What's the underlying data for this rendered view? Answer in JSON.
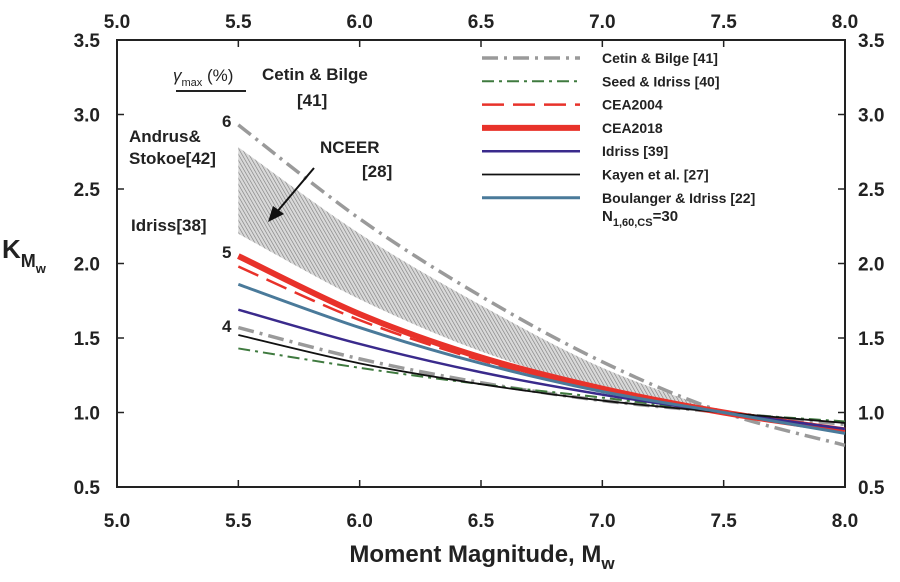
{
  "chart_data": {
    "type": "line",
    "xlabel": "Moment Magnitude, M",
    "xlabel_sub": "w",
    "ylabel": "K",
    "ylabel_sub1": "M",
    "ylabel_sub2": "w",
    "xlim": [
      5.0,
      8.0
    ],
    "ylim": [
      0.5,
      3.5
    ],
    "x_ticks": [
      5.0,
      5.5,
      6.0,
      6.5,
      7.0,
      7.5,
      8.0
    ],
    "y_ticks": [
      0.5,
      1.0,
      1.5,
      2.0,
      2.5,
      3.0,
      3.5
    ],
    "x_tick_labels": [
      "5.0",
      "5.5",
      "6.0",
      "6.5",
      "7.0",
      "7.5",
      "8.0"
    ],
    "y_tick_labels": [
      "0.5",
      "1.0",
      "1.5",
      "2.0",
      "2.5",
      "3.0",
      "3.5"
    ],
    "grid": false,
    "legend_position": "top-right",
    "legend_note": "N",
    "legend_note_sub": "1,60,CS",
    "legend_note_value": "=30",
    "series": [
      {
        "name": "Cetin & Bilge [41]",
        "color": "#9a9a9a",
        "dash": "16,6,3,6",
        "width": 3.5,
        "x": [
          5.5,
          6.0,
          6.5,
          7.0,
          7.5,
          8.0
        ],
        "y": [
          2.93,
          2.3,
          1.78,
          1.34,
          1.0,
          0.78
        ]
      },
      {
        "name": "Cetin & Bilge [41]",
        "color": "#9a9a9a",
        "dash": "16,6,3,6",
        "width": 3.5,
        "legend": false,
        "x": [
          5.5,
          6.0,
          6.5,
          7.0,
          7.5,
          8.0
        ],
        "y": [
          1.57,
          1.36,
          1.2,
          1.08,
          1.0,
          0.92
        ]
      },
      {
        "name": "Seed & Idriss [40]",
        "color": "#3f7a3f",
        "dash": "12,5,3,5",
        "width": 2,
        "x": [
          5.5,
          6.0,
          6.5,
          7.0,
          7.5,
          8.0
        ],
        "y": [
          1.43,
          1.3,
          1.19,
          1.1,
          1.0,
          0.94
        ]
      },
      {
        "name": "CEA2004",
        "color": "#e8322a",
        "dash": "22,9",
        "width": 2.5,
        "x": [
          5.5,
          6.0,
          6.5,
          7.0,
          7.5,
          8.0
        ],
        "y": [
          1.98,
          1.62,
          1.35,
          1.15,
          1.0,
          0.87
        ]
      },
      {
        "name": "CEA2018",
        "color": "#e8322a",
        "dash": "",
        "width": 6,
        "x": [
          5.5,
          6.0,
          6.5,
          7.0,
          7.5,
          8.0
        ],
        "y": [
          2.05,
          1.66,
          1.37,
          1.16,
          1.0,
          0.88
        ]
      },
      {
        "name": "Idriss [39]",
        "color": "#3a2a8c",
        "dash": "",
        "width": 2.5,
        "x": [
          5.5,
          6.0,
          6.5,
          7.0,
          7.5,
          8.0
        ],
        "y": [
          1.69,
          1.46,
          1.27,
          1.12,
          1.0,
          0.89
        ]
      },
      {
        "name": "Kayen et al. [27]",
        "color": "#111111",
        "dash": "",
        "width": 1.8,
        "x": [
          5.5,
          6.0,
          6.5,
          7.0,
          7.5,
          8.0
        ],
        "y": [
          1.52,
          1.33,
          1.19,
          1.08,
          1.0,
          0.93
        ]
      },
      {
        "name": "Boulanger & Idriss [22]",
        "color": "#4a7a9a",
        "dash": "",
        "width": 3,
        "x": [
          5.5,
          6.0,
          6.5,
          7.0,
          7.5,
          8.0
        ],
        "y": [
          1.86,
          1.57,
          1.33,
          1.14,
          1.0,
          0.86
        ]
      }
    ],
    "band": {
      "name": "NCEER [28]",
      "x": [
        5.5,
        6.0,
        6.5,
        7.0,
        7.5
      ],
      "upper": [
        2.78,
        2.2,
        1.72,
        1.3,
        1.0
      ],
      "lower": [
        2.2,
        1.76,
        1.41,
        1.16,
        1.0
      ]
    },
    "annotations": {
      "gamma": "γ",
      "gamma_sub": "max",
      "gamma_unit": " (%)",
      "cetin_line1": "Cetin & Bilge",
      "cetin_line2": "[41]",
      "andrus_line1": "Andrus&",
      "andrus_line2": "Stokoe[42]",
      "nceer_line1": "NCEER",
      "nceer_line2": "[28]",
      "idriss38": "Idriss[38]",
      "label6": "6",
      "label5": "5",
      "label4": "4"
    }
  }
}
